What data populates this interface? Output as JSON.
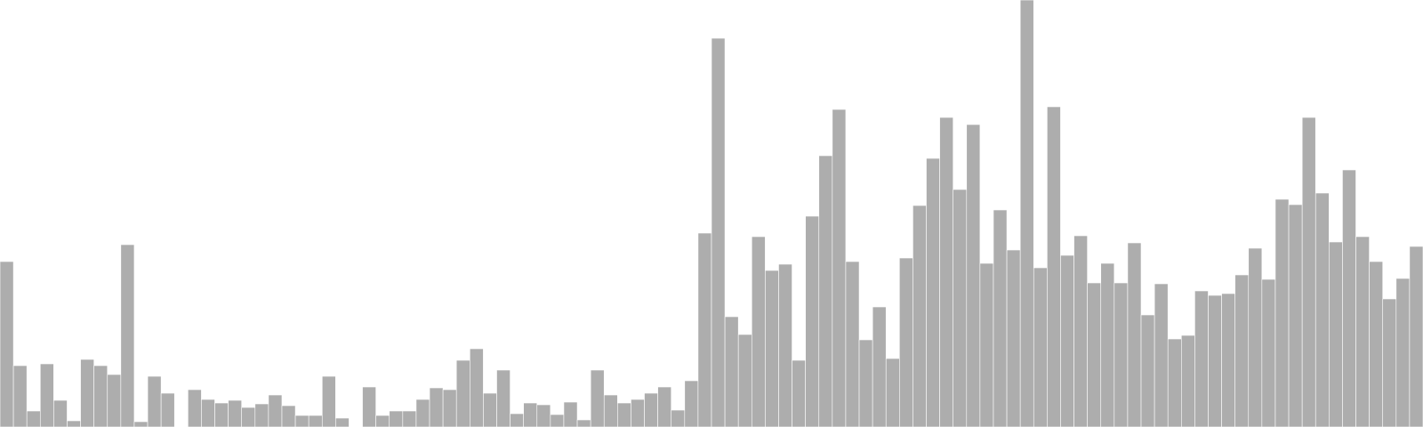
{
  "chart_data": {
    "type": "bar",
    "ylim": [
      0,
      480
    ],
    "grid": false,
    "legend": "none",
    "colors": {
      "bar_fill": "#adadad",
      "bar_stroke": "#ffffff",
      "background": "#ffffff"
    },
    "values": [
      186,
      69,
      18,
      71,
      30,
      7,
      76,
      69,
      59,
      205,
      6,
      57,
      38,
      0,
      42,
      31,
      27,
      30,
      22,
      26,
      36,
      24,
      13,
      13,
      57,
      10,
      0,
      45,
      13,
      18,
      18,
      31,
      44,
      42,
      75,
      88,
      38,
      64,
      15,
      27,
      25,
      14,
      28,
      8,
      64,
      36,
      27,
      31,
      38,
      45,
      19,
      52,
      218,
      437,
      124,
      104,
      214,
      176,
      183,
      75,
      237,
      305,
      357,
      186,
      98,
      135,
      77,
      190,
      249,
      302,
      348,
      267,
      340,
      184,
      244,
      199,
      480,
      179,
      360,
      193,
      215,
      162,
      184,
      162,
      207,
      126,
      161,
      99,
      103,
      153,
      148,
      150,
      171,
      201,
      166,
      256,
      250,
      348,
      263,
      208,
      289,
      214,
      186,
      144,
      167,
      203
    ]
  }
}
